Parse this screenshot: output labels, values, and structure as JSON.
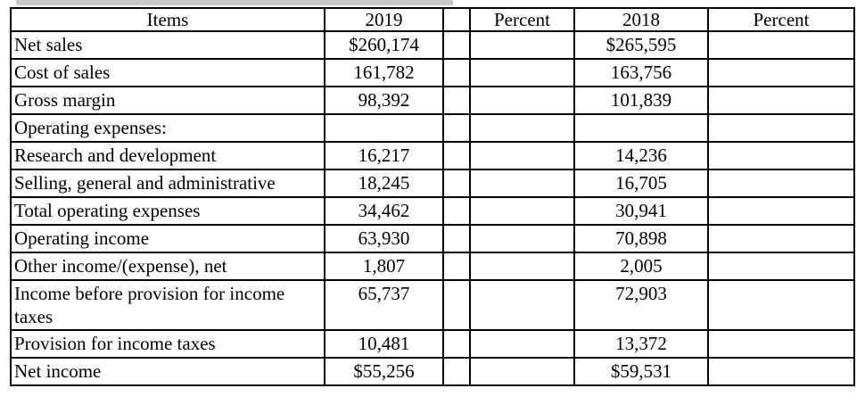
{
  "colors": {
    "background": "#ffffff",
    "text": "#000000",
    "table_border": "#000000",
    "top_strip": "#c9c9c9"
  },
  "table": {
    "headers": {
      "items": "Items",
      "y2019": "2019",
      "spacer": "",
      "percent_2019": "Percent",
      "y2018": "2018",
      "percent_2018": "Percent"
    },
    "rows": [
      {
        "item": "Net sales",
        "y2019": "$260,174",
        "spacer": "",
        "percent_2019": "",
        "y2018": "$265,595",
        "percent_2018": ""
      },
      {
        "item": "Cost of sales",
        "y2019": "161,782",
        "spacer": "",
        "percent_2019": "",
        "y2018": "163,756",
        "percent_2018": ""
      },
      {
        "item": "Gross margin",
        "y2019": "98,392",
        "spacer": "",
        "percent_2019": "",
        "y2018": "101,839",
        "percent_2018": ""
      },
      {
        "item": "Operating expenses:",
        "y2019": "",
        "spacer": "",
        "percent_2019": "",
        "y2018": "",
        "percent_2018": ""
      },
      {
        "item": "Research and development",
        "y2019": "16,217",
        "spacer": "",
        "percent_2019": "",
        "y2018": "14,236",
        "percent_2018": ""
      },
      {
        "item": "Selling, general and administrative",
        "y2019": "18,245",
        "spacer": "",
        "percent_2019": "",
        "y2018": "16,705",
        "percent_2018": ""
      },
      {
        "item": "Total operating expenses",
        "y2019": "34,462",
        "spacer": "",
        "percent_2019": "",
        "y2018": "30,941",
        "percent_2018": ""
      },
      {
        "item": "Operating income",
        "y2019": "63,930",
        "spacer": "",
        "percent_2019": "",
        "y2018": "70,898",
        "percent_2018": ""
      },
      {
        "item": "Other income/(expense), net",
        "y2019": "1,807",
        "spacer": "",
        "percent_2019": "",
        "y2018": "2,005",
        "percent_2018": ""
      },
      {
        "item": "Income before provision for income taxes",
        "y2019": "65,737",
        "spacer": "",
        "percent_2019": "",
        "y2018": "72,903",
        "percent_2018": ""
      },
      {
        "item": "Provision for income taxes",
        "y2019": "10,481",
        "spacer": "",
        "percent_2019": "",
        "y2018": "13,372",
        "percent_2018": ""
      },
      {
        "item": "Net income",
        "y2019": "$55,256",
        "spacer": "",
        "percent_2019": "",
        "y2018": "$59,531",
        "percent_2018": ""
      }
    ]
  }
}
